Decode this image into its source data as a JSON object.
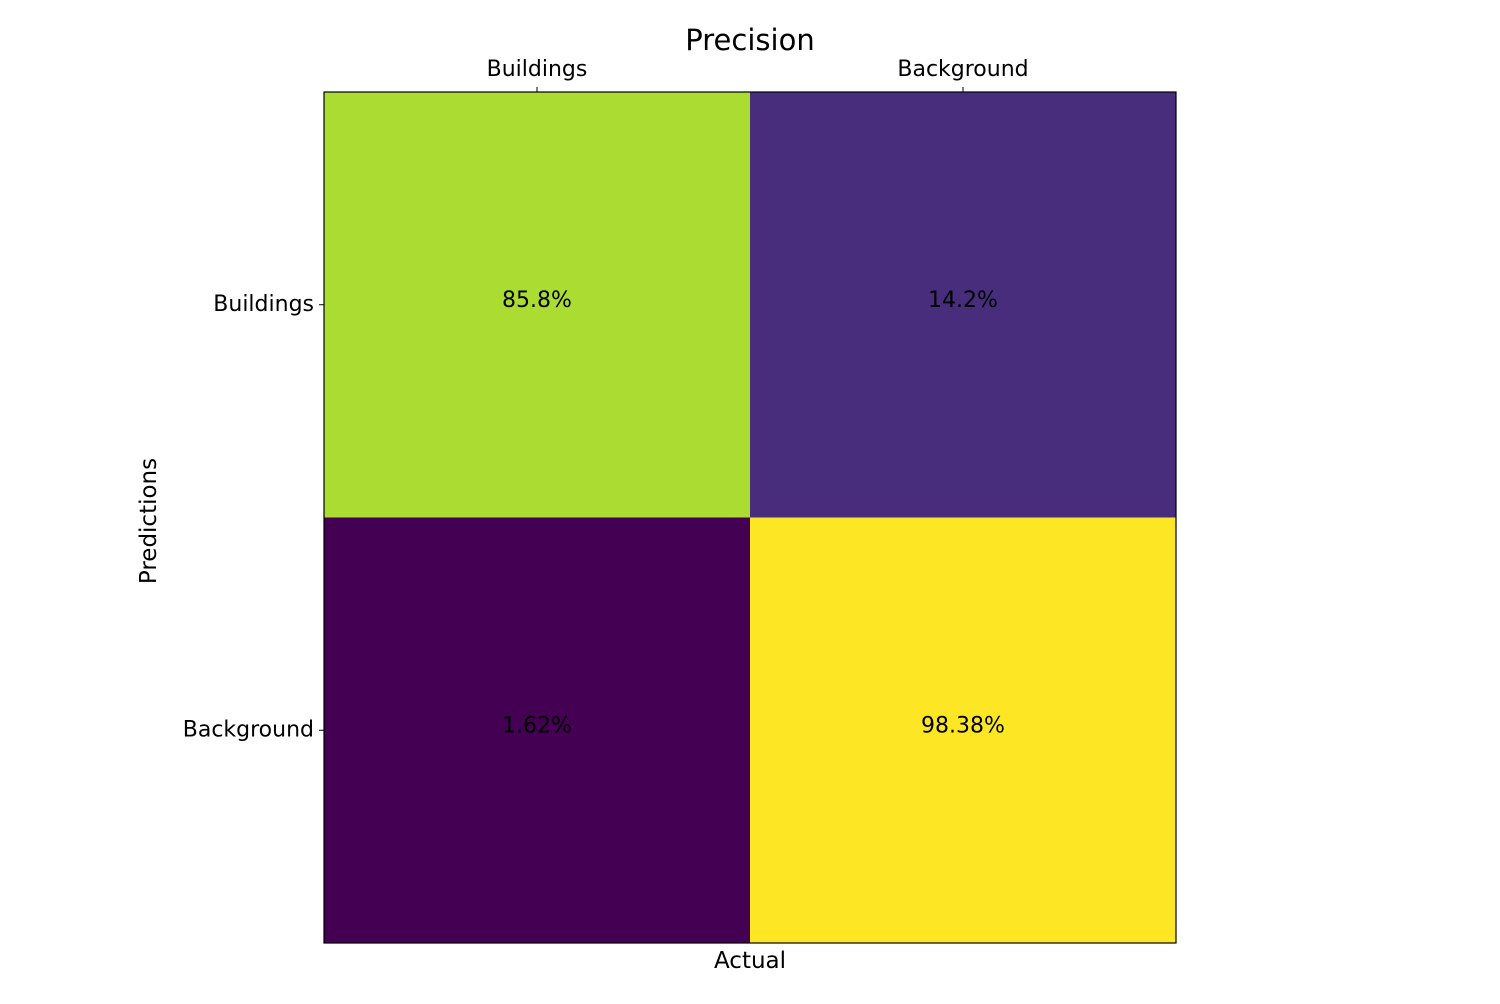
{
  "chart_data": {
    "type": "heatmap",
    "title": "Precision",
    "xlabel": "Actual",
    "ylabel": "Predictions",
    "x_categories": [
      "Buildings",
      "Background"
    ],
    "y_categories": [
      "Buildings",
      "Background"
    ],
    "x_tick_position": "top",
    "values": [
      [
        85.8,
        14.2
      ],
      [
        1.62,
        98.38
      ]
    ],
    "cell_labels": [
      [
        "85.8%",
        "14.2%"
      ],
      [
        "1.62%",
        "98.38%"
      ]
    ],
    "colormap": "viridis",
    "cell_colors": [
      [
        "#aadc32",
        "#472d7b"
      ],
      [
        "#440154",
        "#fde725"
      ]
    ],
    "grid": false,
    "legend": "none"
  }
}
